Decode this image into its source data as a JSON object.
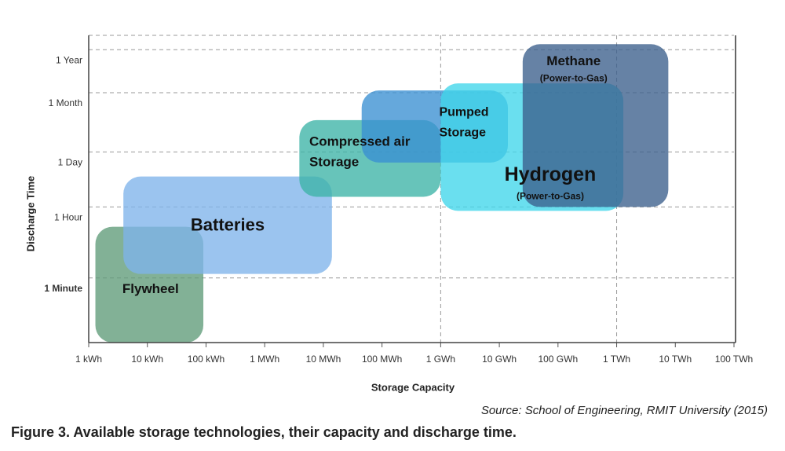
{
  "chart_data": {
    "type": "range",
    "x_label": "Storage Capacity",
    "y_label": "Discharge Time",
    "source": "Source: School of Engineering, RMIT University (2015)",
    "caption": "Figure 3. Available storage technologies, their capacity and discharge time.",
    "x_log": true,
    "y_log": true,
    "xlim": [
      1,
      100000000000
    ],
    "ylim": [
      0.0004,
      20000
    ],
    "xticks": [
      {
        "value": 1,
        "label": "1 kWh"
      },
      {
        "value": 10,
        "label": "10 kWh"
      },
      {
        "value": 100,
        "label": "100 kWh"
      },
      {
        "value": 1000,
        "label": "1 MWh"
      },
      {
        "value": 10000,
        "label": "10 MWh"
      },
      {
        "value": 100000,
        "label": "100 MWh"
      },
      {
        "value": 1000000,
        "label": "1 GWh"
      },
      {
        "value": 10000000,
        "label": "10 GWh"
      },
      {
        "value": 100000000,
        "label": "100 GWh"
      },
      {
        "value": 1000000000,
        "label": "1 TWh"
      },
      {
        "value": 10000000000,
        "label": "10 TWh"
      },
      {
        "value": 100000000000,
        "label": "100 TWh"
      }
    ],
    "yticks": [
      {
        "value": 0.0167,
        "label": "1 Minute"
      },
      {
        "value": 1,
        "label": "1 Hour"
      },
      {
        "value": 24,
        "label": "1 Day"
      },
      {
        "value": 730,
        "label": "1 Month"
      },
      {
        "value": 8760,
        "label": "1 Year"
      }
    ],
    "xgrid_ticks": [
      6,
      9
    ],
    "series": [
      {
        "label_lines": [
          "Flywheel"
        ],
        "color": "#5f9b79",
        "x": [
          1.3,
          90
        ],
        "y": [
          0.0004,
          0.32
        ]
      },
      {
        "label_lines": [
          "Batteries"
        ],
        "color": "#7fb4ea",
        "x": [
          3.9,
          14000
        ],
        "y": [
          0.021,
          5.8
        ]
      },
      {
        "label_lines": [
          "Compressed air",
          "Storage"
        ],
        "color": "#3cb4a7",
        "x": [
          3900,
          1000000
        ],
        "y": [
          1.8,
          150
        ]
      },
      {
        "label_lines": [
          "Pumped",
          "Storage"
        ],
        "color": "#3a8fd2",
        "x": [
          45000,
          14000000
        ],
        "y": [
          13,
          830
        ]
      },
      {
        "label_lines": [
          "Hydrogen"
        ],
        "sublabel": "(Power-to-Gas)",
        "color": "#40d6ea",
        "x": [
          1000000,
          1300000000
        ],
        "y": [
          0.8,
          1250
        ]
      },
      {
        "label_lines": [
          "Methane"
        ],
        "sublabel": "(Power-to-Gas)",
        "color": "#3b5f8c",
        "x": [
          25000000,
          7600000000
        ],
        "y": [
          1,
          12000
        ]
      }
    ]
  }
}
